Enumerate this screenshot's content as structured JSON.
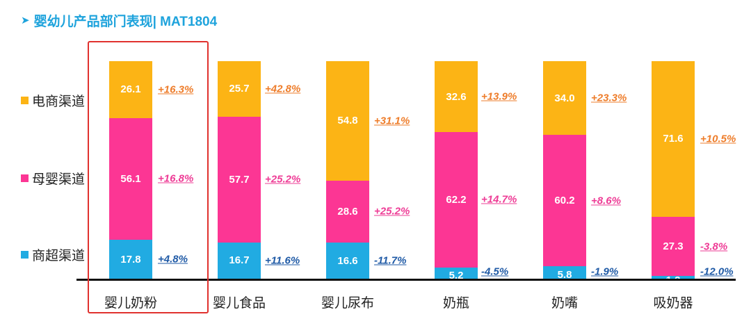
{
  "header": {
    "arrow_icon": "triangle-right-icon",
    "title": "婴幼儿产品部门表现| MAT1804"
  },
  "colors": {
    "ecommerce": "#fcb415",
    "maternal": "#fc3694",
    "supermarket": "#21abe2"
  },
  "chart_data": {
    "type": "bar",
    "stacked": true,
    "categories": [
      "婴儿奶粉",
      "婴儿食品",
      "婴儿尿布",
      "奶瓶",
      "奶嘴",
      "吸奶器"
    ],
    "series": [
      {
        "name": "商超渠道",
        "values": [
          17.8,
          16.7,
          16.6,
          5.2,
          5.8,
          1.2
        ],
        "growth": [
          "+4.8%",
          "+11.6%",
          "-11.7%",
          "-4.5%",
          "-1.9%",
          "-12.0%"
        ],
        "color": "#21abe2",
        "growth_color": "#1f5aa6"
      },
      {
        "name": "母婴渠道",
        "values": [
          56.1,
          57.7,
          28.6,
          62.2,
          60.2,
          27.3
        ],
        "growth": [
          "+16.8%",
          "+25.2%",
          "+25.2%",
          "+14.7%",
          "+8.6%",
          "-3.8%"
        ],
        "color": "#fc3694",
        "growth_color": "#ee3c96"
      },
      {
        "name": "电商渠道",
        "values": [
          26.1,
          25.7,
          54.8,
          32.6,
          34.0,
          71.6
        ],
        "growth": [
          "+16.3%",
          "+42.8%",
          "+31.1%",
          "+13.9%",
          "+23.3%",
          "+10.5%"
        ],
        "color": "#fcb415",
        "growth_color": "#ee7d2b"
      }
    ],
    "highlighted_category": "婴儿奶粉",
    "ylim": [
      0,
      100
    ],
    "legend": "left"
  }
}
